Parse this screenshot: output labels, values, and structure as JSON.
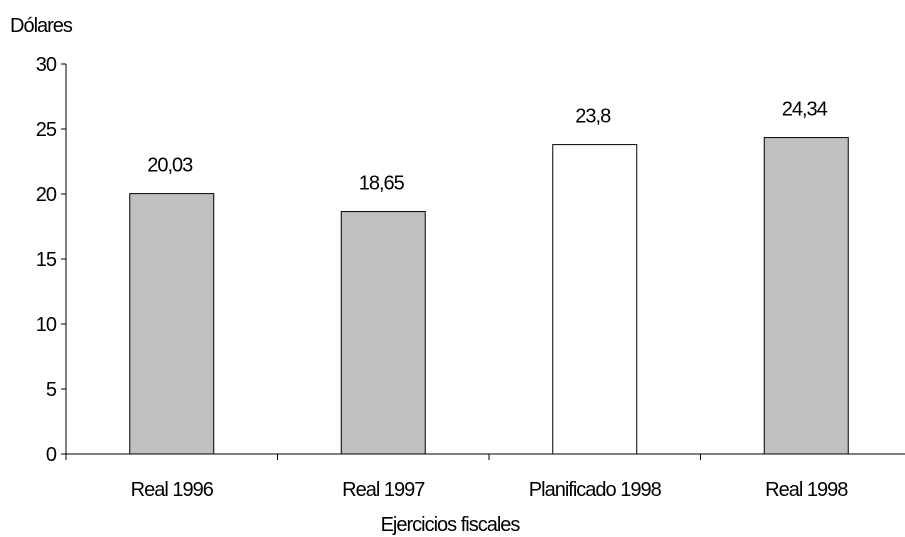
{
  "chart_data": {
    "type": "bar",
    "ylabel": "Dólares",
    "xlabel": "Ejercicios fiscales",
    "categories": [
      "Real 1996",
      "Real 1997",
      "Planificado 1998",
      "Real 1998"
    ],
    "values": [
      20.03,
      18.65,
      23.8,
      24.34
    ],
    "value_labels": [
      "20,03",
      "18,65",
      "23,8",
      "24,34"
    ],
    "bar_colors": [
      "#c0c0c0",
      "#c0c0c0",
      "#ffffff",
      "#c0c0c0"
    ],
    "ylim": [
      0,
      30
    ],
    "yticks": [
      0,
      5,
      10,
      15,
      20,
      25,
      30
    ],
    "grid": false,
    "legend": "none"
  }
}
